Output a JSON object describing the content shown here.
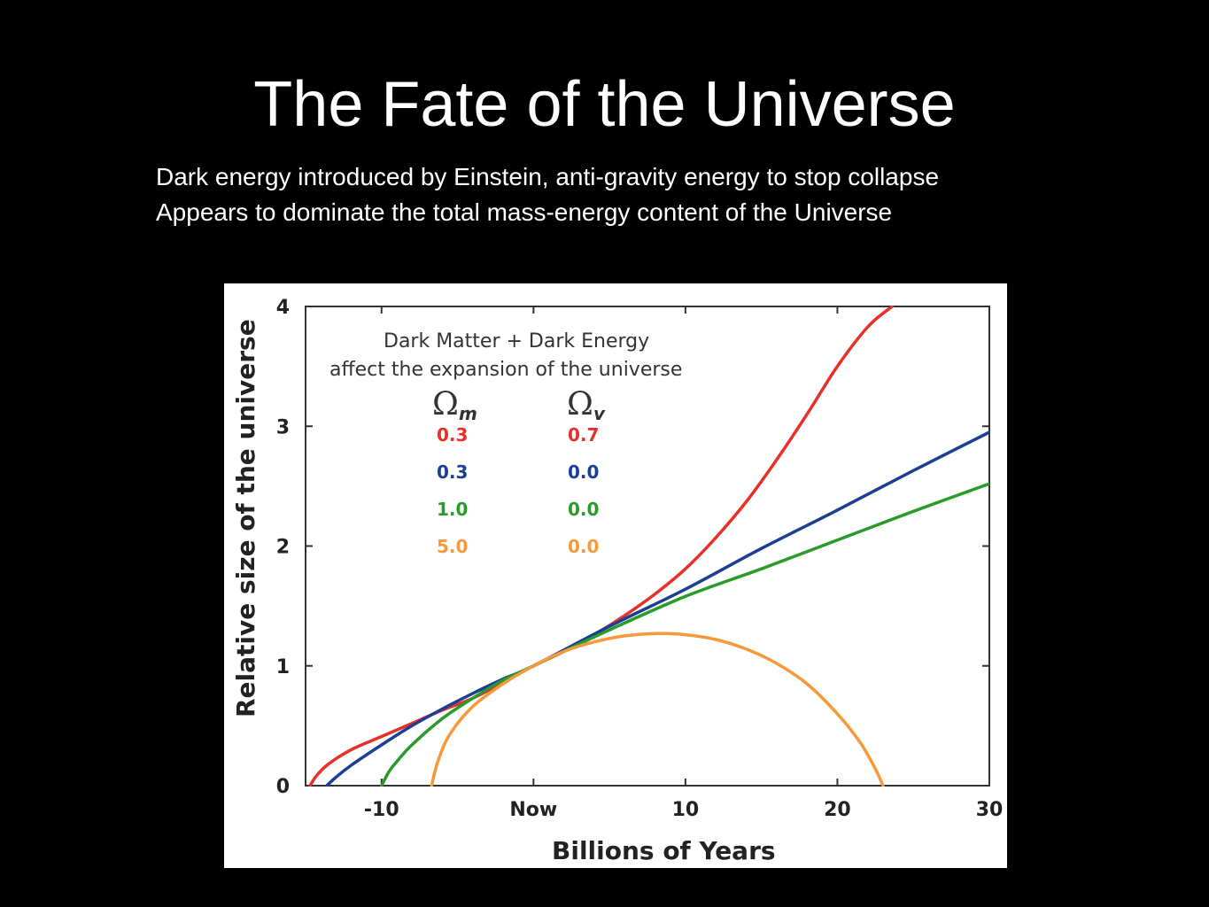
{
  "slide": {
    "title": "The Fate of the Universe",
    "lines": [
      "Dark energy introduced by Einstein, anti-gravity energy to stop collapse",
      "Appears to dominate the total mass-energy content of the Universe"
    ]
  },
  "chart_data": {
    "type": "line",
    "title": "",
    "annotation": [
      "Dark Matter + Dark Energy",
      "affect the expansion of the universe"
    ],
    "xlabel": "Billions of Years",
    "ylabel": "Relative size of the universe",
    "xlim": [
      -15,
      30
    ],
    "ylim": [
      0,
      4
    ],
    "x_ticks": [
      {
        "value": -10,
        "label": "-10"
      },
      {
        "value": 0,
        "label": "Now"
      },
      {
        "value": 10,
        "label": "10"
      },
      {
        "value": 20,
        "label": "20"
      },
      {
        "value": 30,
        "label": "30"
      }
    ],
    "y_ticks": [
      {
        "value": 0,
        "label": "0"
      },
      {
        "value": 1,
        "label": "1"
      },
      {
        "value": 2,
        "label": "2"
      },
      {
        "value": 3,
        "label": "3"
      },
      {
        "value": 4,
        "label": "4"
      }
    ],
    "grid": false,
    "legend": {
      "placement": "top-left",
      "headers": {
        "omega_m": "Ω",
        "omega_m_sub": "m",
        "omega_v": "Ω",
        "omega_v_sub": "v"
      }
    },
    "series": [
      {
        "omega_m": "0.3",
        "omega_v": "0.7",
        "color": "#e8302a",
        "x": [
          -14.7,
          -14.3,
          -13.5,
          -12,
          -10,
          -8,
          -6,
          -4,
          -2,
          0,
          2,
          4,
          6,
          8,
          10,
          12,
          14,
          16,
          18,
          20,
          22,
          23.6
        ],
        "y": [
          0,
          0.08,
          0.18,
          0.3,
          0.41,
          0.52,
          0.63,
          0.73,
          0.86,
          1.0,
          1.12,
          1.26,
          1.42,
          1.6,
          1.81,
          2.07,
          2.37,
          2.72,
          3.1,
          3.5,
          3.83,
          4.0
        ]
      },
      {
        "omega_m": "0.3",
        "omega_v": "0.0",
        "color": "#1c3e94",
        "x": [
          -13.6,
          -13,
          -12,
          -10,
          -8,
          -6,
          -4,
          -2,
          0,
          5,
          10,
          15,
          20,
          25,
          30
        ],
        "y": [
          0,
          0.07,
          0.17,
          0.34,
          0.5,
          0.64,
          0.77,
          0.89,
          1.0,
          1.33,
          1.64,
          1.98,
          2.3,
          2.63,
          2.95
        ]
      },
      {
        "omega_m": "1.0",
        "omega_v": "0.0",
        "color": "#2a9a2a",
        "x": [
          -10,
          -9.5,
          -9,
          -8,
          -6,
          -4,
          -2,
          0,
          5,
          10,
          15,
          20,
          25,
          30
        ],
        "y": [
          0,
          0.12,
          0.2,
          0.34,
          0.56,
          0.73,
          0.88,
          1.0,
          1.3,
          1.58,
          1.81,
          2.05,
          2.29,
          2.52
        ]
      },
      {
        "omega_m": "5.0",
        "omega_v": "0.0",
        "color": "#f5993a",
        "x": [
          -6.7,
          -6.3,
          -5.5,
          -4,
          -2,
          0,
          2,
          4,
          6,
          8,
          10,
          12,
          14,
          16,
          18,
          20,
          21.5,
          22.5,
          23
        ],
        "y": [
          0,
          0.2,
          0.43,
          0.66,
          0.85,
          1.0,
          1.12,
          1.2,
          1.25,
          1.27,
          1.26,
          1.22,
          1.14,
          1.02,
          0.85,
          0.6,
          0.36,
          0.14,
          0
        ]
      }
    ]
  }
}
